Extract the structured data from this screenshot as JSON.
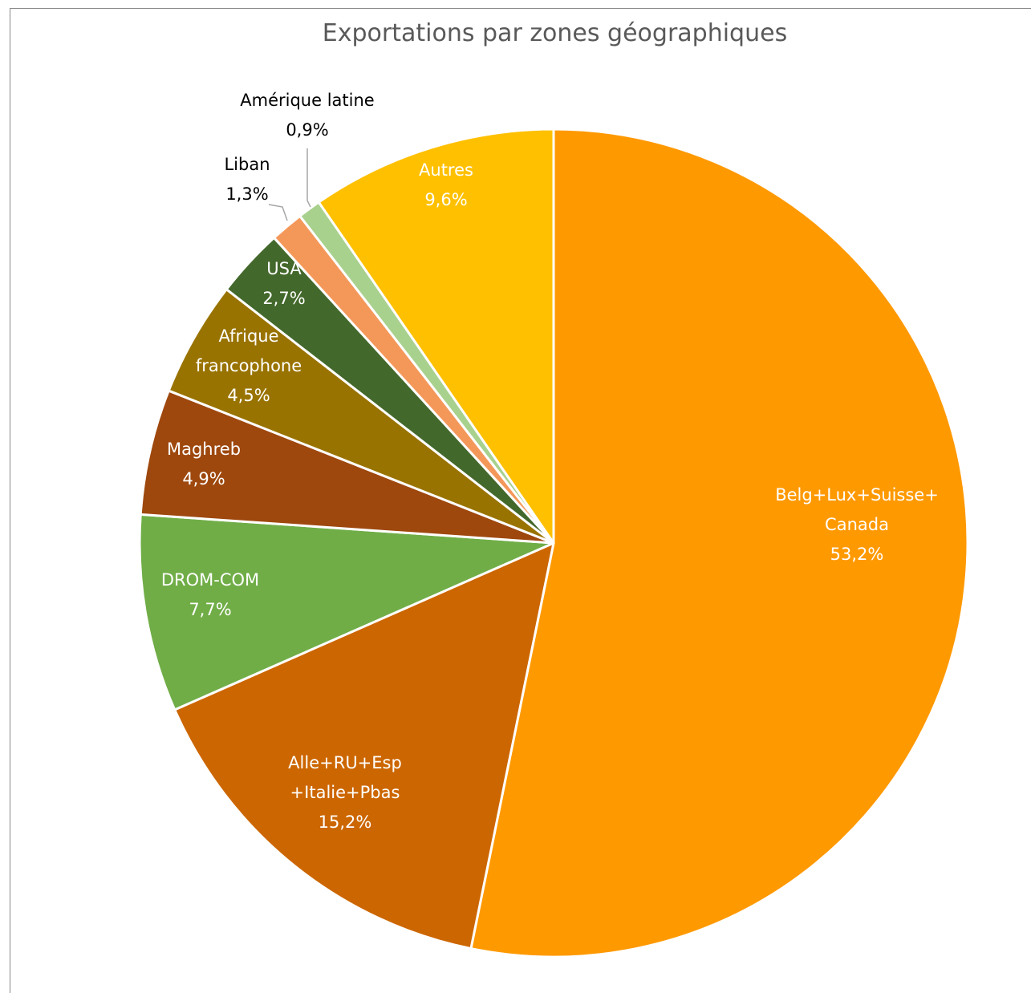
{
  "chart_data": {
    "type": "pie",
    "title": "Exportations par zones géographiques",
    "slices": [
      {
        "name": "Belg+Lux+Suisse+Canada",
        "label_lines": [
          "Belg+Lux+Suisse+",
          "Canada"
        ],
        "value_label": "53,2%",
        "value": 53.2,
        "color": "#FF9900"
      },
      {
        "name": "Alle+RU+Esp+Italie+Pbas",
        "label_lines": [
          "Alle+RU+Esp",
          "+Italie+Pbas"
        ],
        "value_label": "15,2%",
        "value": 15.2,
        "color": "#CC6600"
      },
      {
        "name": "DROM-COM",
        "label_lines": [
          "DROM-COM"
        ],
        "value_label": "7,7%",
        "value": 7.7,
        "color": "#70AD47"
      },
      {
        "name": "Maghreb",
        "label_lines": [
          "Maghreb"
        ],
        "value_label": "4,9%",
        "value": 4.9,
        "color": "#9E480E"
      },
      {
        "name": "Afrique francophone",
        "label_lines": [
          "Afrique",
          "francophone"
        ],
        "value_label": "4,5%",
        "value": 4.5,
        "color": "#997300"
      },
      {
        "name": "USA",
        "label_lines": [
          "USA"
        ],
        "value_label": "2,7%",
        "value": 2.7,
        "color": "#43682B"
      },
      {
        "name": "Liban",
        "label_lines": [
          "Liban"
        ],
        "value_label": "1,3%",
        "value": 1.3,
        "color": "#F4985A"
      },
      {
        "name": "Amérique latine",
        "label_lines": [
          "Amérique latine"
        ],
        "value_label": "0,9%",
        "value": 0.9,
        "color": "#A9D18E"
      },
      {
        "name": "Autres",
        "label_lines": [
          "Autres"
        ],
        "value_label": "9,6%",
        "value": 9.6,
        "color": "#FFC000"
      }
    ],
    "legend": "none"
  }
}
